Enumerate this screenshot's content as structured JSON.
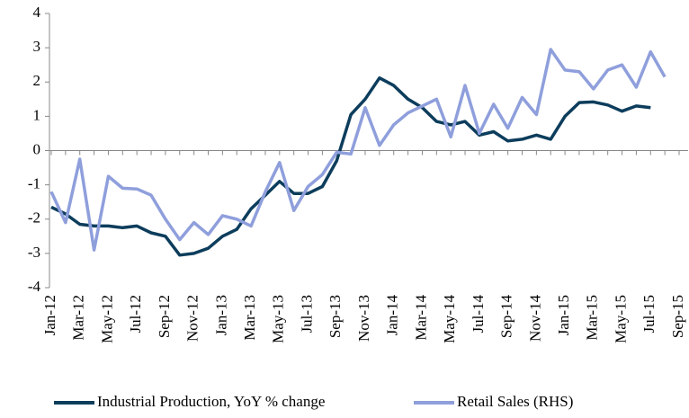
{
  "chart_data": {
    "type": "line",
    "categories": [
      "Jan-12",
      null,
      "Mar-12",
      null,
      "May-12",
      null,
      "Jul-12",
      null,
      "Sep-12",
      null,
      "Nov-12",
      null,
      "Jan-13",
      null,
      "Mar-13",
      null,
      "May-13",
      null,
      "Jul-13",
      null,
      "Sep-13",
      null,
      "Nov-13",
      null,
      "Jan-14",
      null,
      "Mar-14",
      null,
      "May-14",
      null,
      "Jul-14",
      null,
      "Sep-14",
      null,
      "Nov-14",
      null,
      "Jan-15",
      null,
      "Mar-15",
      null,
      "May-15",
      null,
      "Jul-15",
      null,
      "Sep-15"
    ],
    "series": [
      {
        "name": "Industrial Production, YoY % change",
        "color": "#0d3d5c",
        "values": [
          -1.65,
          -1.85,
          -2.15,
          -2.2,
          -2.2,
          -2.25,
          -2.2,
          -2.4,
          -2.5,
          -3.05,
          -3.0,
          -2.85,
          -2.5,
          -2.3,
          -1.7,
          -1.3,
          -0.9,
          -1.25,
          -1.25,
          -1.05,
          -0.3,
          1.05,
          1.5,
          2.12,
          1.9,
          1.5,
          1.25,
          0.85,
          0.75,
          0.85,
          0.45,
          0.55,
          0.28,
          0.33,
          0.45,
          0.33,
          1.0,
          1.4,
          1.42,
          1.33,
          1.15,
          1.3,
          1.25,
          null,
          null
        ]
      },
      {
        "name": "Retail Sales (RHS)",
        "color": "#8f9fdc",
        "values": [
          -1.2,
          -2.1,
          -0.25,
          -2.9,
          -0.75,
          -1.1,
          -1.12,
          -1.3,
          -2.0,
          -2.6,
          -2.1,
          -2.45,
          -1.9,
          -2.0,
          -2.2,
          -1.2,
          -0.35,
          -1.75,
          -1.05,
          -0.7,
          -0.05,
          -0.1,
          1.25,
          0.15,
          0.75,
          1.1,
          1.3,
          1.5,
          0.4,
          1.9,
          0.5,
          1.35,
          0.65,
          1.55,
          1.05,
          2.95,
          2.35,
          2.3,
          1.8,
          2.35,
          2.5,
          1.85,
          2.88,
          2.15,
          null
        ]
      }
    ],
    "ylim": [
      -4,
      4
    ],
    "yticks": [
      -4,
      -3,
      -2,
      -1,
      0,
      1,
      2,
      3,
      4
    ],
    "legend": "bottom"
  }
}
